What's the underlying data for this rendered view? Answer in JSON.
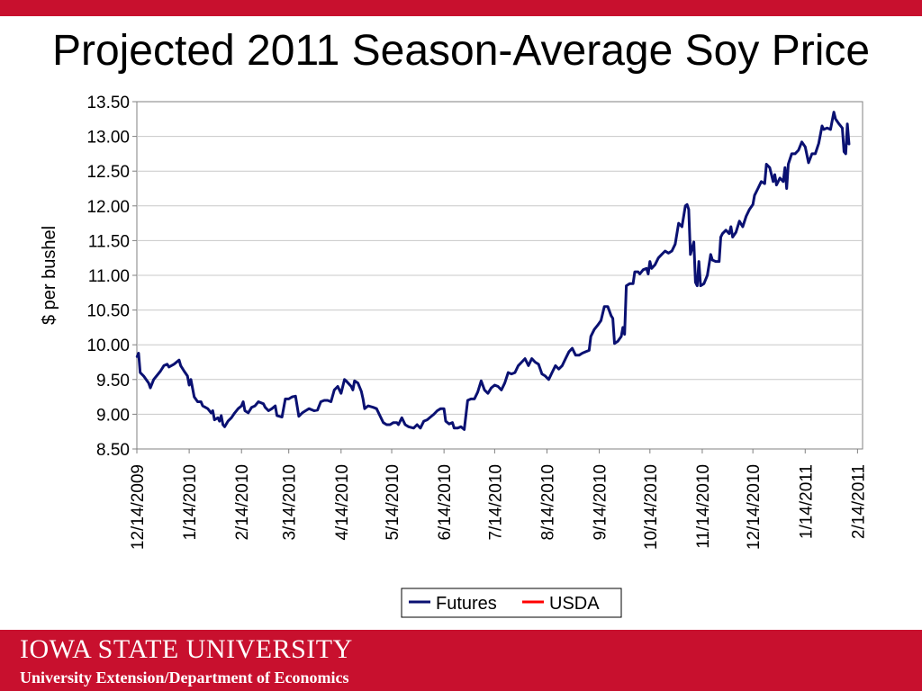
{
  "slide": {
    "title": "Projected 2011 Season-Average Soy Price"
  },
  "footer": {
    "logo_text": "IOWA STATE UNIVERSITY",
    "subtitle": "University Extension/Department of Economics"
  },
  "colors": {
    "brand_red": "#c8102e",
    "futures": "#0a1172",
    "usda": "#ff0000"
  },
  "chart_data": {
    "type": "line",
    "title": "",
    "xlabel": "",
    "ylabel": "$ per bushel",
    "ylim": [
      8.5,
      13.5
    ],
    "xlim": [
      "2009-12-14",
      "2011-02-17"
    ],
    "yticks": [
      "13.50",
      "13.00",
      "12.50",
      "12.00",
      "11.50",
      "11.00",
      "10.50",
      "10.00",
      "9.50",
      "9.00",
      "8.50"
    ],
    "xticks": [
      {
        "date": "2009-12-14",
        "label": "12/14/2009"
      },
      {
        "date": "2010-01-14",
        "label": "1/14/2010"
      },
      {
        "date": "2010-02-14",
        "label": "2/14/2010"
      },
      {
        "date": "2010-03-14",
        "label": "3/14/2010"
      },
      {
        "date": "2010-04-14",
        "label": "4/14/2010"
      },
      {
        "date": "2010-05-14",
        "label": "5/14/2010"
      },
      {
        "date": "2010-06-14",
        "label": "6/14/2010"
      },
      {
        "date": "2010-07-14",
        "label": "7/14/2010"
      },
      {
        "date": "2010-08-14",
        "label": "8/14/2010"
      },
      {
        "date": "2010-09-14",
        "label": "9/14/2010"
      },
      {
        "date": "2010-10-14",
        "label": "10/14/2010"
      },
      {
        "date": "2010-11-14",
        "label": "11/14/2010"
      },
      {
        "date": "2010-12-14",
        "label": "12/14/2010"
      },
      {
        "date": "2011-01-14",
        "label": "1/14/2011"
      },
      {
        "date": "2011-02-14",
        "label": "2/14/2011"
      }
    ],
    "grid": true,
    "legend_position": "bottom",
    "series": [
      {
        "name": "Futures",
        "color": "#0a1172",
        "points": [
          [
            "2009-12-14",
            9.82
          ],
          [
            "2009-12-15",
            9.88
          ],
          [
            "2009-12-16",
            9.6
          ],
          [
            "2009-12-18",
            9.55
          ],
          [
            "2009-12-21",
            9.45
          ],
          [
            "2009-12-22",
            9.38
          ],
          [
            "2009-12-24",
            9.5
          ],
          [
            "2009-12-28",
            9.62
          ],
          [
            "2009-12-30",
            9.7
          ],
          [
            "2010-01-01",
            9.72
          ],
          [
            "2010-01-02",
            9.68
          ],
          [
            "2010-01-05",
            9.72
          ],
          [
            "2010-01-08",
            9.78
          ],
          [
            "2010-01-09",
            9.7
          ],
          [
            "2010-01-11",
            9.62
          ],
          [
            "2010-01-13",
            9.55
          ],
          [
            "2010-01-14",
            9.42
          ],
          [
            "2010-01-15",
            9.5
          ],
          [
            "2010-01-17",
            9.25
          ],
          [
            "2010-01-19",
            9.18
          ],
          [
            "2010-01-21",
            9.18
          ],
          [
            "2010-01-22",
            9.12
          ],
          [
            "2010-01-25",
            9.08
          ],
          [
            "2010-01-27",
            9.02
          ],
          [
            "2010-01-28",
            9.05
          ],
          [
            "2010-01-29",
            8.92
          ],
          [
            "2010-01-31",
            8.95
          ],
          [
            "2010-02-01",
            8.9
          ],
          [
            "2010-02-02",
            8.98
          ],
          [
            "2010-02-03",
            8.85
          ],
          [
            "2010-02-04",
            8.82
          ],
          [
            "2010-02-06",
            8.9
          ],
          [
            "2010-02-08",
            8.95
          ],
          [
            "2010-02-10",
            9.02
          ],
          [
            "2010-02-12",
            9.08
          ],
          [
            "2010-02-14",
            9.12
          ],
          [
            "2010-02-15",
            9.18
          ],
          [
            "2010-02-16",
            9.05
          ],
          [
            "2010-02-18",
            9.02
          ],
          [
            "2010-02-20",
            9.1
          ],
          [
            "2010-02-22",
            9.12
          ],
          [
            "2010-02-24",
            9.18
          ],
          [
            "2010-02-27",
            9.15
          ],
          [
            "2010-02-28",
            9.1
          ],
          [
            "2010-03-02",
            9.05
          ],
          [
            "2010-03-04",
            9.08
          ],
          [
            "2010-03-06",
            9.12
          ],
          [
            "2010-03-07",
            8.98
          ],
          [
            "2010-03-10",
            8.96
          ],
          [
            "2010-03-12",
            9.22
          ],
          [
            "2010-03-14",
            9.22
          ],
          [
            "2010-03-16",
            9.25
          ],
          [
            "2010-03-18",
            9.26
          ],
          [
            "2010-03-20",
            8.97
          ],
          [
            "2010-03-22",
            9.02
          ],
          [
            "2010-03-24",
            9.05
          ],
          [
            "2010-03-26",
            9.08
          ],
          [
            "2010-03-29",
            9.05
          ],
          [
            "2010-03-31",
            9.06
          ],
          [
            "2010-04-02",
            9.18
          ],
          [
            "2010-04-04",
            9.2
          ],
          [
            "2010-04-06",
            9.2
          ],
          [
            "2010-04-08",
            9.18
          ],
          [
            "2010-04-10",
            9.35
          ],
          [
            "2010-04-12",
            9.4
          ],
          [
            "2010-04-14",
            9.3
          ],
          [
            "2010-04-16",
            9.5
          ],
          [
            "2010-04-17",
            9.48
          ],
          [
            "2010-04-20",
            9.4
          ],
          [
            "2010-04-21",
            9.35
          ],
          [
            "2010-04-22",
            9.48
          ],
          [
            "2010-04-24",
            9.45
          ],
          [
            "2010-04-26",
            9.33
          ],
          [
            "2010-04-27",
            9.22
          ],
          [
            "2010-04-28",
            9.08
          ],
          [
            "2010-04-30",
            9.12
          ],
          [
            "2010-05-03",
            9.1
          ],
          [
            "2010-05-05",
            9.08
          ],
          [
            "2010-05-07",
            8.98
          ],
          [
            "2010-05-09",
            8.88
          ],
          [
            "2010-05-11",
            8.85
          ],
          [
            "2010-05-13",
            8.85
          ],
          [
            "2010-05-15",
            8.88
          ],
          [
            "2010-05-17",
            8.88
          ],
          [
            "2010-05-18",
            8.85
          ],
          [
            "2010-05-20",
            8.95
          ],
          [
            "2010-05-22",
            8.85
          ],
          [
            "2010-05-24",
            8.82
          ],
          [
            "2010-05-27",
            8.8
          ],
          [
            "2010-05-29",
            8.85
          ],
          [
            "2010-05-31",
            8.8
          ],
          [
            "2010-06-02",
            8.9
          ],
          [
            "2010-06-04",
            8.92
          ],
          [
            "2010-06-06",
            8.96
          ],
          [
            "2010-06-08",
            9.0
          ],
          [
            "2010-06-10",
            9.05
          ],
          [
            "2010-06-12",
            9.08
          ],
          [
            "2010-06-14",
            9.08
          ],
          [
            "2010-06-15",
            8.9
          ],
          [
            "2010-06-17",
            8.86
          ],
          [
            "2010-06-19",
            8.88
          ],
          [
            "2010-06-20",
            8.8
          ],
          [
            "2010-06-22",
            8.8
          ],
          [
            "2010-06-24",
            8.82
          ],
          [
            "2010-06-26",
            8.78
          ],
          [
            "2010-06-28",
            9.2
          ],
          [
            "2010-06-30",
            9.22
          ],
          [
            "2010-07-02",
            9.22
          ],
          [
            "2010-07-04",
            9.32
          ],
          [
            "2010-07-06",
            9.48
          ],
          [
            "2010-07-08",
            9.35
          ],
          [
            "2010-07-10",
            9.3
          ],
          [
            "2010-07-12",
            9.38
          ],
          [
            "2010-07-14",
            9.42
          ],
          [
            "2010-07-16",
            9.4
          ],
          [
            "2010-07-18",
            9.35
          ],
          [
            "2010-07-20",
            9.45
          ],
          [
            "2010-07-22",
            9.6
          ],
          [
            "2010-07-24",
            9.58
          ],
          [
            "2010-07-26",
            9.6
          ],
          [
            "2010-07-28",
            9.7
          ],
          [
            "2010-07-30",
            9.75
          ],
          [
            "2010-08-01",
            9.8
          ],
          [
            "2010-08-03",
            9.7
          ],
          [
            "2010-08-05",
            9.8
          ],
          [
            "2010-08-07",
            9.75
          ],
          [
            "2010-08-09",
            9.72
          ],
          [
            "2010-08-11",
            9.58
          ],
          [
            "2010-08-13",
            9.55
          ],
          [
            "2010-08-15",
            9.5
          ],
          [
            "2010-08-17",
            9.6
          ],
          [
            "2010-08-19",
            9.7
          ],
          [
            "2010-08-21",
            9.65
          ],
          [
            "2010-08-23",
            9.7
          ],
          [
            "2010-08-25",
            9.8
          ],
          [
            "2010-08-27",
            9.9
          ],
          [
            "2010-08-29",
            9.95
          ],
          [
            "2010-08-31",
            9.85
          ],
          [
            "2010-09-02",
            9.85
          ],
          [
            "2010-09-04",
            9.88
          ],
          [
            "2010-09-06",
            9.9
          ],
          [
            "2010-09-08",
            9.92
          ],
          [
            "2010-09-09",
            10.12
          ],
          [
            "2010-09-11",
            10.22
          ],
          [
            "2010-09-13",
            10.28
          ],
          [
            "2010-09-15",
            10.35
          ],
          [
            "2010-09-17",
            10.55
          ],
          [
            "2010-09-19",
            10.55
          ],
          [
            "2010-09-21",
            10.42
          ],
          [
            "2010-09-22",
            10.38
          ],
          [
            "2010-09-23",
            10.02
          ],
          [
            "2010-09-25",
            10.05
          ],
          [
            "2010-09-27",
            10.12
          ],
          [
            "2010-09-28",
            10.25
          ],
          [
            "2010-09-29",
            10.15
          ],
          [
            "2010-09-30",
            10.85
          ],
          [
            "2010-10-02",
            10.88
          ],
          [
            "2010-10-04",
            10.88
          ],
          [
            "2010-10-05",
            11.05
          ],
          [
            "2010-10-07",
            11.05
          ],
          [
            "2010-10-08",
            11.02
          ],
          [
            "2010-10-10",
            11.08
          ],
          [
            "2010-10-12",
            11.1
          ],
          [
            "2010-10-13",
            11.02
          ],
          [
            "2010-10-14",
            11.2
          ],
          [
            "2010-10-15",
            11.1
          ],
          [
            "2010-10-17",
            11.15
          ],
          [
            "2010-10-19",
            11.25
          ],
          [
            "2010-10-21",
            11.3
          ],
          [
            "2010-10-23",
            11.35
          ],
          [
            "2010-10-25",
            11.32
          ],
          [
            "2010-10-27",
            11.35
          ],
          [
            "2010-10-29",
            11.45
          ],
          [
            "2010-10-31",
            11.75
          ],
          [
            "2010-11-02",
            11.7
          ],
          [
            "2010-11-04",
            12.0
          ],
          [
            "2010-11-05",
            12.02
          ],
          [
            "2010-11-06",
            11.95
          ],
          [
            "2010-11-07",
            11.3
          ],
          [
            "2010-11-09",
            11.48
          ],
          [
            "2010-11-10",
            10.9
          ],
          [
            "2010-11-11",
            10.85
          ],
          [
            "2010-11-12",
            11.2
          ],
          [
            "2010-11-13",
            10.85
          ],
          [
            "2010-11-15",
            10.88
          ],
          [
            "2010-11-17",
            11.0
          ],
          [
            "2010-11-19",
            11.3
          ],
          [
            "2010-11-20",
            11.22
          ],
          [
            "2010-11-22",
            11.2
          ],
          [
            "2010-11-24",
            11.2
          ],
          [
            "2010-11-25",
            11.55
          ],
          [
            "2010-11-26",
            11.6
          ],
          [
            "2010-11-28",
            11.65
          ],
          [
            "2010-11-30",
            11.6
          ],
          [
            "2010-12-01",
            11.7
          ],
          [
            "2010-12-02",
            11.55
          ],
          [
            "2010-12-04",
            11.62
          ],
          [
            "2010-12-06",
            11.78
          ],
          [
            "2010-12-08",
            11.7
          ],
          [
            "2010-12-10",
            11.85
          ],
          [
            "2010-12-12",
            11.95
          ],
          [
            "2010-12-14",
            12.02
          ],
          [
            "2010-12-15",
            12.15
          ],
          [
            "2010-12-17",
            12.25
          ],
          [
            "2010-12-19",
            12.35
          ],
          [
            "2010-12-21",
            12.32
          ],
          [
            "2010-12-22",
            12.6
          ],
          [
            "2010-12-24",
            12.55
          ],
          [
            "2010-12-26",
            12.35
          ],
          [
            "2010-12-27",
            12.45
          ],
          [
            "2010-12-28",
            12.3
          ],
          [
            "2010-12-30",
            12.4
          ],
          [
            "2011-01-01",
            12.35
          ],
          [
            "2011-01-02",
            12.55
          ],
          [
            "2011-01-03",
            12.25
          ],
          [
            "2011-01-04",
            12.6
          ],
          [
            "2011-01-06",
            12.75
          ],
          [
            "2011-01-08",
            12.75
          ],
          [
            "2011-01-10",
            12.8
          ],
          [
            "2011-01-12",
            12.92
          ],
          [
            "2011-01-14",
            12.85
          ],
          [
            "2011-01-16",
            12.62
          ],
          [
            "2011-01-18",
            12.75
          ],
          [
            "2011-01-20",
            12.75
          ],
          [
            "2011-01-22",
            12.9
          ],
          [
            "2011-01-24",
            13.15
          ],
          [
            "2011-01-25",
            13.1
          ],
          [
            "2011-01-27",
            13.12
          ],
          [
            "2011-01-29",
            13.1
          ],
          [
            "2011-01-31",
            13.35
          ],
          [
            "2011-02-01",
            13.25
          ],
          [
            "2011-02-03",
            13.18
          ],
          [
            "2011-02-05",
            13.12
          ],
          [
            "2011-02-06",
            12.78
          ],
          [
            "2011-02-07",
            12.75
          ],
          [
            "2011-02-08",
            13.18
          ],
          [
            "2011-02-09",
            12.88
          ]
        ]
      },
      {
        "name": "USDA",
        "color": "#ff0000",
        "points": []
      }
    ]
  }
}
